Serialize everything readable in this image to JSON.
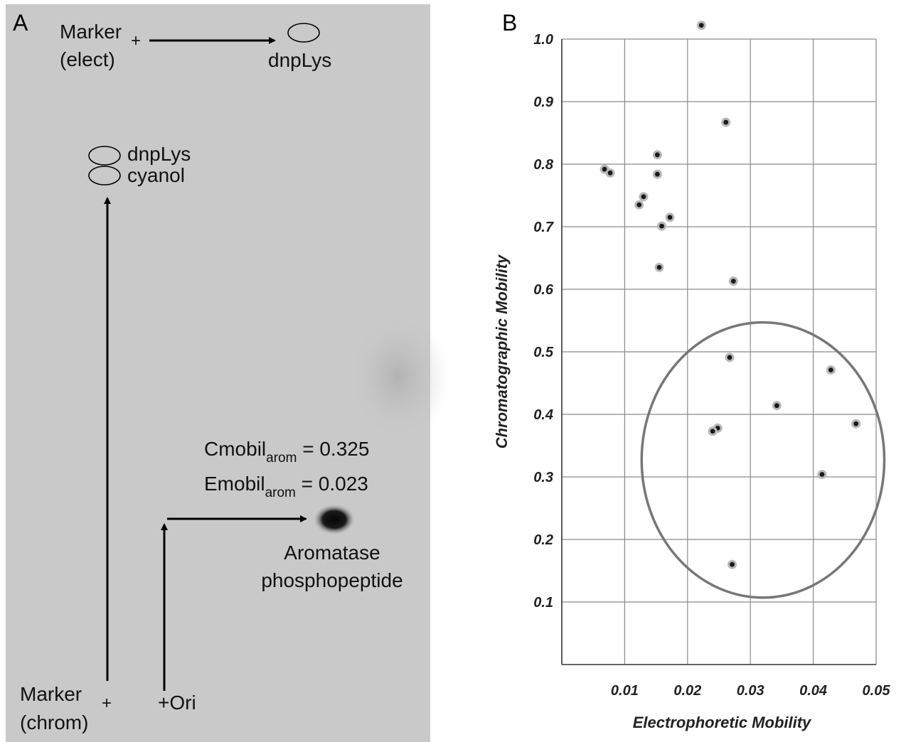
{
  "panel_a": {
    "letter": "A",
    "marker_elect": {
      "line1": "Marker",
      "plus": "+",
      "line2": "(elect)"
    },
    "marker_elect_target": "dnpLys",
    "chrom_spots": {
      "upper": "dnpLys",
      "lower": "cyanol"
    },
    "marker_chrom": {
      "line1": "Marker",
      "plus": "+",
      "line2": "(chrom)"
    },
    "origin": "+Ori",
    "cmobil": {
      "prefix": "Cmobil",
      "sub": "arom",
      "suffix": " = 0.325"
    },
    "emobil": {
      "prefix": "Emobil",
      "sub": "arom",
      "suffix": " = 0.023"
    },
    "spot_label": {
      "line1": "Aromatase",
      "line2": "phosphopeptide"
    },
    "colors": {
      "background": "#c9c9c9",
      "spot": "#0d0d0d"
    }
  },
  "panel_b": {
    "letter": "B"
  },
  "chart_data": {
    "type": "scatter",
    "xlabel": "Electrophoretic Mobility",
    "ylabel": "Chromatographic Mobility",
    "xlim": [
      0.0,
      0.05
    ],
    "ylim": [
      0.0,
      1.0
    ],
    "x_ticks": [
      0.01,
      0.02,
      0.03,
      0.04,
      0.05
    ],
    "y_ticks": [
      0.1,
      0.2,
      0.3,
      0.4,
      0.5,
      0.6,
      0.7,
      0.8,
      0.9,
      1.0
    ],
    "x_tick_labels": [
      "0.01",
      "0.02",
      "0.03",
      "0.04",
      "0.05"
    ],
    "y_tick_labels": [
      "0.1",
      "0.2",
      "0.3",
      "0.4",
      "0.5",
      "0.6",
      "0.7",
      "0.8",
      "0.9",
      "1.0"
    ],
    "grid": true,
    "points": [
      {
        "x": 0.0222,
        "y": 1.022
      },
      {
        "x": 0.0261,
        "y": 0.867
      },
      {
        "x": 0.0152,
        "y": 0.815
      },
      {
        "x": 0.0068,
        "y": 0.792
      },
      {
        "x": 0.0077,
        "y": 0.786
      },
      {
        "x": 0.0152,
        "y": 0.784
      },
      {
        "x": 0.013,
        "y": 0.748
      },
      {
        "x": 0.0123,
        "y": 0.735
      },
      {
        "x": 0.0172,
        "y": 0.715
      },
      {
        "x": 0.0159,
        "y": 0.701
      },
      {
        "x": 0.0155,
        "y": 0.635
      },
      {
        "x": 0.0273,
        "y": 0.613
      },
      {
        "x": 0.0267,
        "y": 0.491
      },
      {
        "x": 0.0428,
        "y": 0.471
      },
      {
        "x": 0.0342,
        "y": 0.414
      },
      {
        "x": 0.0468,
        "y": 0.385
      },
      {
        "x": 0.0248,
        "y": 0.378
      },
      {
        "x": 0.024,
        "y": 0.373
      },
      {
        "x": 0.0414,
        "y": 0.304
      },
      {
        "x": 0.0271,
        "y": 0.16
      }
    ],
    "ellipse": {
      "cx": 0.032,
      "cy": 0.327,
      "rx": 0.0193,
      "ry": 0.22
    },
    "colors": {
      "grid": "#8a8a8a",
      "axis": "#333333",
      "point": "#1a1a1a",
      "point_halo": "#b8b8b8",
      "ellipse": "#777777"
    }
  }
}
